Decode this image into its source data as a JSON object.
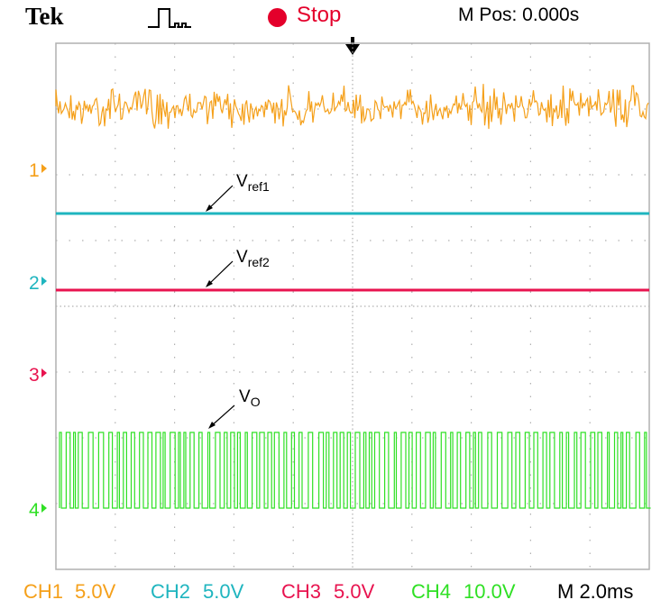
{
  "header": {
    "brand": "Tek",
    "acq_icon": "single-pulse-trigger-icon",
    "status": "Stop",
    "status_color": "#e4002b",
    "m_pos": "M Pos: 0.000s"
  },
  "channels": [
    {
      "id": "1",
      "marker": "1",
      "color": "#f5a01a",
      "scale": "5.0V",
      "label": "CH1"
    },
    {
      "id": "2",
      "marker": "2",
      "color": "#1fb5bf",
      "scale": "5.0V",
      "label": "CH2"
    },
    {
      "id": "3",
      "marker": "3",
      "color": "#e8134f",
      "scale": "5.0V",
      "label": "CH3"
    },
    {
      "id": "4",
      "marker": "4",
      "color": "#2fe024",
      "scale": "10.0V",
      "label": "CH4"
    }
  ],
  "annotations": {
    "vref1": {
      "base": "V",
      "sub": "ref1"
    },
    "vref2": {
      "base": "V",
      "sub": "ref2"
    },
    "vo": {
      "base": "V",
      "sub": "O"
    }
  },
  "timebase": "M 2.0ms",
  "grid": {
    "divisions_x": 10,
    "divisions_y": 8,
    "color": "#b0b0b0"
  }
}
